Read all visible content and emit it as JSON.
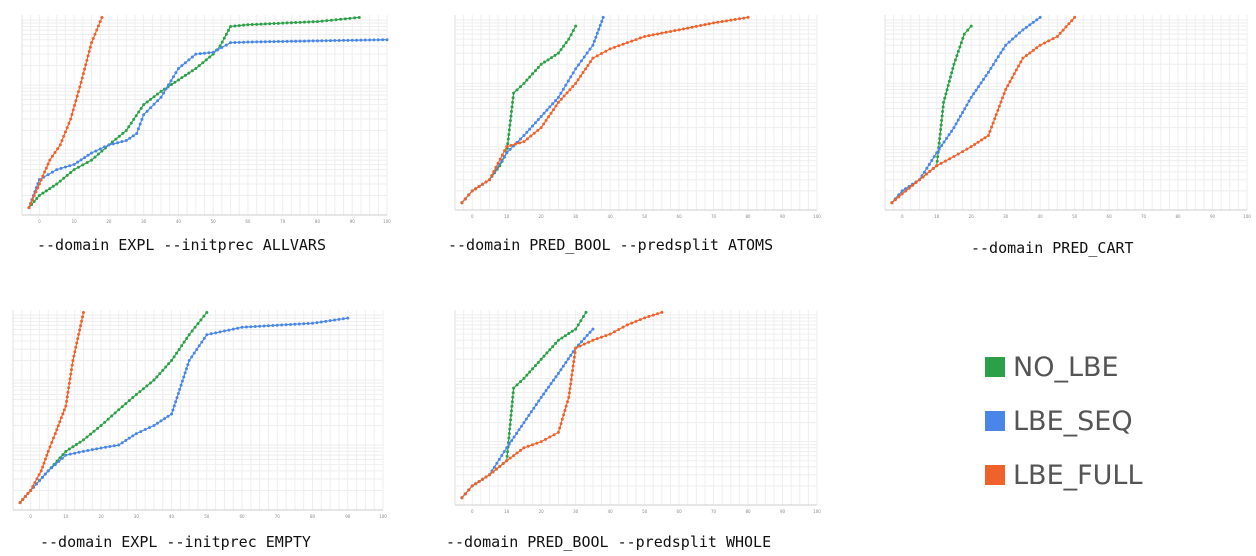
{
  "colors": {
    "NO_LBE": "#2ca048",
    "LBE_SEQ": "#4a86e8",
    "LBE_FULL": "#f0622b"
  },
  "legend": [
    {
      "label": "NO_LBE",
      "color": "#2ca048"
    },
    {
      "label": "LBE_SEQ",
      "color": "#4a86e8"
    },
    {
      "label": "LBE_FULL",
      "color": "#f0622b"
    }
  ],
  "chart_data": [
    {
      "type": "line",
      "title": "--domain EXPL --initprec ALLVARS",
      "x_ticks": [
        0,
        10,
        20,
        30,
        40,
        50,
        60,
        70,
        80,
        90,
        100
      ],
      "xlim": [
        -5,
        100
      ],
      "yscale": "log",
      "series": [
        {
          "name": "NO_LBE",
          "x": [
            -3,
            0,
            5,
            10,
            15,
            20,
            25,
            30,
            35,
            40,
            45,
            50,
            52,
            55,
            60,
            70,
            80,
            92
          ],
          "y": [
            1.3,
            2,
            3,
            5,
            7,
            12,
            20,
            50,
            80,
            120,
            180,
            300,
            400,
            800,
            850,
            900,
            950,
            1100
          ]
        },
        {
          "name": "LBE_SEQ",
          "x": [
            -3,
            0,
            5,
            10,
            15,
            20,
            25,
            28,
            30,
            35,
            40,
            45,
            50,
            55,
            60,
            70,
            80,
            90,
            100
          ],
          "y": [
            1.3,
            3.5,
            5,
            6,
            9,
            12,
            14,
            18,
            35,
            65,
            180,
            300,
            320,
            450,
            460,
            470,
            480,
            490,
            500
          ]
        },
        {
          "name": "LBE_FULL",
          "x": [
            -3,
            0,
            3,
            6,
            9,
            12,
            15,
            18
          ],
          "y": [
            1.3,
            3,
            7,
            12,
            30,
            110,
            450,
            1100
          ]
        }
      ]
    },
    {
      "type": "line",
      "title": "--domain PRED_BOOL --predsplit ATOMS",
      "x_ticks": [
        0,
        10,
        20,
        30,
        40,
        50,
        60,
        70,
        80,
        90,
        100
      ],
      "xlim": [
        -5,
        100
      ],
      "yscale": "log",
      "series": [
        {
          "name": "NO_LBE",
          "x": [
            -3,
            0,
            5,
            8,
            10,
            12,
            15,
            20,
            25,
            28,
            30
          ],
          "y": [
            1.3,
            2,
            3,
            5,
            8,
            70,
            100,
            200,
            300,
            500,
            800
          ]
        },
        {
          "name": "LBE_SEQ",
          "x": [
            -3,
            0,
            5,
            10,
            15,
            20,
            25,
            30,
            35,
            38
          ],
          "y": [
            1.3,
            2,
            3,
            8,
            15,
            30,
            60,
            170,
            400,
            1100
          ]
        },
        {
          "name": "LBE_FULL",
          "x": [
            -3,
            0,
            5,
            10,
            15,
            20,
            25,
            30,
            35,
            40,
            50,
            60,
            70,
            80
          ],
          "y": [
            1.3,
            2,
            3,
            10,
            12,
            20,
            50,
            100,
            250,
            350,
            550,
            700,
            900,
            1100
          ]
        }
      ]
    },
    {
      "type": "line",
      "title": "--domain PRED_CART",
      "x_ticks": [
        0,
        10,
        20,
        30,
        40,
        50,
        60,
        70,
        80,
        90,
        100
      ],
      "xlim": [
        -5,
        100
      ],
      "yscale": "log",
      "series": [
        {
          "name": "NO_LBE",
          "x": [
            -3,
            0,
            5,
            10,
            12,
            15,
            18,
            20
          ],
          "y": [
            1.3,
            2,
            3,
            5,
            50,
            200,
            600,
            800
          ]
        },
        {
          "name": "LBE_SEQ",
          "x": [
            -3,
            0,
            5,
            10,
            15,
            20,
            25,
            30,
            35,
            40
          ],
          "y": [
            1.3,
            2,
            3,
            8,
            20,
            60,
            150,
            400,
            700,
            1100
          ]
        },
        {
          "name": "LBE_FULL",
          "x": [
            -3,
            0,
            5,
            10,
            15,
            20,
            25,
            30,
            35,
            40,
            45,
            50
          ],
          "y": [
            1.3,
            1.8,
            3,
            5,
            7,
            10,
            15,
            80,
            250,
            400,
            550,
            1100
          ]
        }
      ]
    },
    {
      "type": "line",
      "title": "--domain EXPL --initprec EMPTY",
      "x_ticks": [
        0,
        10,
        20,
        30,
        40,
        50,
        60,
        70,
        80,
        90,
        100
      ],
      "xlim": [
        -5,
        100
      ],
      "yscale": "log",
      "series": [
        {
          "name": "NO_LBE",
          "x": [
            -3,
            0,
            5,
            10,
            15,
            20,
            25,
            30,
            35,
            40,
            45,
            50
          ],
          "y": [
            1.3,
            2,
            4,
            8,
            12,
            20,
            35,
            60,
            100,
            200,
            500,
            1100
          ]
        },
        {
          "name": "LBE_SEQ",
          "x": [
            -3,
            0,
            5,
            10,
            15,
            20,
            25,
            30,
            35,
            40,
            45,
            50,
            60,
            70,
            80,
            90
          ],
          "y": [
            1.3,
            2,
            4,
            7,
            8,
            9,
            10,
            15,
            20,
            30,
            200,
            500,
            650,
            700,
            750,
            900
          ]
        },
        {
          "name": "LBE_FULL",
          "x": [
            -3,
            0,
            3,
            5,
            7,
            10,
            12,
            15
          ],
          "y": [
            1.3,
            2,
            4,
            8,
            15,
            40,
            200,
            1100
          ]
        }
      ]
    },
    {
      "type": "line",
      "title": "--domain PRED_BOOL --predsplit WHOLE",
      "x_ticks": [
        0,
        10,
        20,
        30,
        40,
        50,
        60,
        70,
        80,
        90,
        100
      ],
      "xlim": [
        -5,
        100
      ],
      "yscale": "log",
      "series": [
        {
          "name": "NO_LBE",
          "x": [
            -3,
            0,
            5,
            10,
            12,
            15,
            20,
            25,
            30,
            33
          ],
          "y": [
            1.3,
            2,
            3,
            5,
            70,
            100,
            200,
            400,
            600,
            1100
          ]
        },
        {
          "name": "LBE_SEQ",
          "x": [
            -3,
            0,
            5,
            10,
            15,
            20,
            25,
            30,
            35
          ],
          "y": [
            1.3,
            2,
            3,
            8,
            20,
            50,
            120,
            300,
            600
          ]
        },
        {
          "name": "LBE_FULL",
          "x": [
            -3,
            0,
            5,
            10,
            15,
            20,
            25,
            28,
            30,
            35,
            40,
            45,
            50,
            55
          ],
          "y": [
            1.3,
            2,
            3,
            5,
            8,
            10,
            14,
            50,
            300,
            400,
            500,
            700,
            900,
            1100
          ]
        }
      ]
    }
  ]
}
